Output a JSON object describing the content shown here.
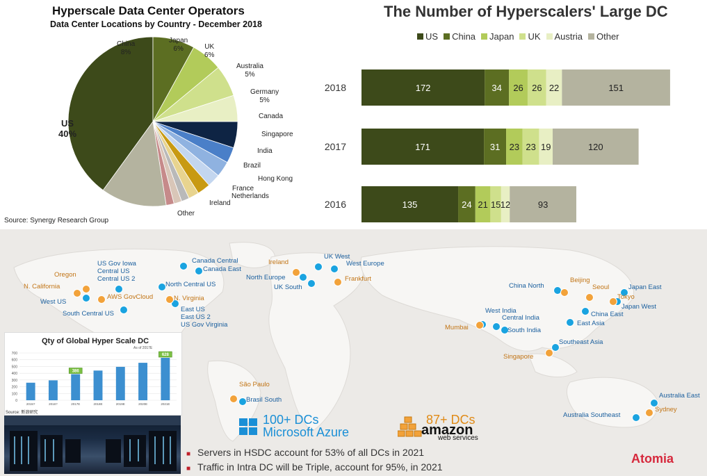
{
  "pie": {
    "title": "Hyperscale Data Center Operators",
    "subtitle": "Data Center Locations by Country - December 2018",
    "source": "Source: Synergy Research Group"
  },
  "bar": {
    "title": "The Number of Hyperscalers' Large DC"
  },
  "chart_data": [
    {
      "type": "pie",
      "title": "Hyperscale Data Center Operators",
      "subtitle": "Data Center Locations by Country - December 2018",
      "slices": [
        {
          "label": "US",
          "value": 40,
          "value_label": "40%",
          "color": "#3d4a1a"
        },
        {
          "label": "China",
          "value": 8,
          "value_label": "8%",
          "color": "#5c6e22"
        },
        {
          "label": "Japan",
          "value": 6,
          "value_label": "6%",
          "color": "#b2cb5a"
        },
        {
          "label": "UK",
          "value": 6,
          "value_label": "6%",
          "color": "#cfe08c"
        },
        {
          "label": "Australia",
          "value": 5,
          "value_label": "5%",
          "color": "#e8efc4"
        },
        {
          "label": "Germany",
          "value": 5,
          "value_label": "5%",
          "color": "#0e2444"
        },
        {
          "label": "Canada",
          "value": 3,
          "value_label": "",
          "color": "#4a7fc8"
        },
        {
          "label": "Singapore",
          "value": 3,
          "value_label": "",
          "color": "#8fb2e0"
        },
        {
          "label": "India",
          "value": 2.5,
          "value_label": "",
          "color": "#c3d6ef"
        },
        {
          "label": "Brazil",
          "value": 2.5,
          "value_label": "",
          "color": "#c89a12"
        },
        {
          "label": "Hong Kong",
          "value": 2,
          "value_label": "",
          "color": "#e8d48f"
        },
        {
          "label": "France",
          "value": 1.5,
          "value_label": "",
          "color": "#b9b9b9"
        },
        {
          "label": "Netherlands",
          "value": 1.5,
          "value_label": "",
          "color": "#d9c6b8"
        },
        {
          "label": "Ireland",
          "value": 1.5,
          "value_label": "",
          "color": "#c68a8a"
        },
        {
          "label": "Other",
          "value": 12.5,
          "value_label": "",
          "color": "#b4b39f"
        }
      ]
    },
    {
      "type": "bar",
      "orientation": "horizontal",
      "stacked": true,
      "title": "The Number of Hyperscalers' Large DC",
      "categories": [
        "2018",
        "2017",
        "2016"
      ],
      "series": [
        {
          "name": "US",
          "values": [
            172,
            171,
            135
          ],
          "color": "#3d4a1a"
        },
        {
          "name": "China",
          "values": [
            34,
            31,
            24
          ],
          "color": "#5c6e22"
        },
        {
          "name": "Japan",
          "values": [
            26,
            23,
            21
          ],
          "color": "#b2cb5a"
        },
        {
          "name": "UK",
          "values": [
            26,
            23,
            15
          ],
          "color": "#cfe08c"
        },
        {
          "name": "Austria",
          "values": [
            22,
            19,
            12
          ],
          "color": "#e8efc4"
        },
        {
          "name": "Other",
          "values": [
            151,
            120,
            93
          ],
          "color": "#b4b39f"
        }
      ],
      "legend": "top"
    },
    {
      "type": "bar",
      "title": "Qty of Global Hyper Scale DC",
      "subtitle": "As of 2017E",
      "categories": [
        "2015?",
        "2016?",
        "2017E",
        "2018E",
        "2019E",
        "2020E",
        "2021E"
      ],
      "values": [
        260,
        295,
        386,
        440,
        495,
        555,
        628
      ],
      "callouts": [
        "386",
        "628"
      ],
      "ylim": [
        0,
        700
      ],
      "yticks": [
        "0",
        "100",
        "200",
        "300",
        "400",
        "500",
        "600",
        "700"
      ],
      "source": "Source: 新浪研究"
    }
  ],
  "map": {
    "azure_cities": [
      {
        "name": "US Gov Iowa\nCentral US\nCentral US 2"
      },
      {
        "name": "West US"
      },
      {
        "name": "South Central US"
      },
      {
        "name": "North Central US"
      },
      {
        "name": "East US\nEast US 2\nUS Gov Virginia"
      },
      {
        "name": "Canada Central"
      },
      {
        "name": "Canada East"
      },
      {
        "name": "North Europe"
      },
      {
        "name": "UK South"
      },
      {
        "name": "UK West"
      },
      {
        "name": "West Europe"
      },
      {
        "name": "China North"
      },
      {
        "name": "Japan East"
      },
      {
        "name": "Japan West"
      },
      {
        "name": "China East"
      },
      {
        "name": "East Asia"
      },
      {
        "name": "West India"
      },
      {
        "name": "Central India"
      },
      {
        "name": "South India"
      },
      {
        "name": "Southeast Asia"
      },
      {
        "name": "Brasil South"
      },
      {
        "name": "Australia East"
      },
      {
        "name": "Australia Southeast"
      }
    ],
    "aws_cities": [
      {
        "name": "Oregon"
      },
      {
        "name": "N. California"
      },
      {
        "name": "AWS GovCloud"
      },
      {
        "name": "N. Virginia"
      },
      {
        "name": "Ireland"
      },
      {
        "name": "Frankfurt"
      },
      {
        "name": "Beijing"
      },
      {
        "name": "Seoul"
      },
      {
        "name": "Tokyo"
      },
      {
        "name": "Mumbai"
      },
      {
        "name": "Singapore"
      },
      {
        "name": "São Paulo"
      },
      {
        "name": "Sydney"
      }
    ],
    "azure_dcs": "100+ DCs",
    "azure_name": "Microsoft Azure",
    "aws_dcs": "87+ DCs",
    "aws_name": "amazon",
    "aws_sub": "web services"
  },
  "bullets": [
    "Servers in HSDC account for 53% of all DCs in 2021",
    "Traffic in Intra DC will be Triple, account for 95%, in 2021"
  ],
  "brand": "Atomia",
  "colors": {
    "azure": "#1aa3e0",
    "aws": "#f2a23a",
    "accent": "#d6283c"
  }
}
